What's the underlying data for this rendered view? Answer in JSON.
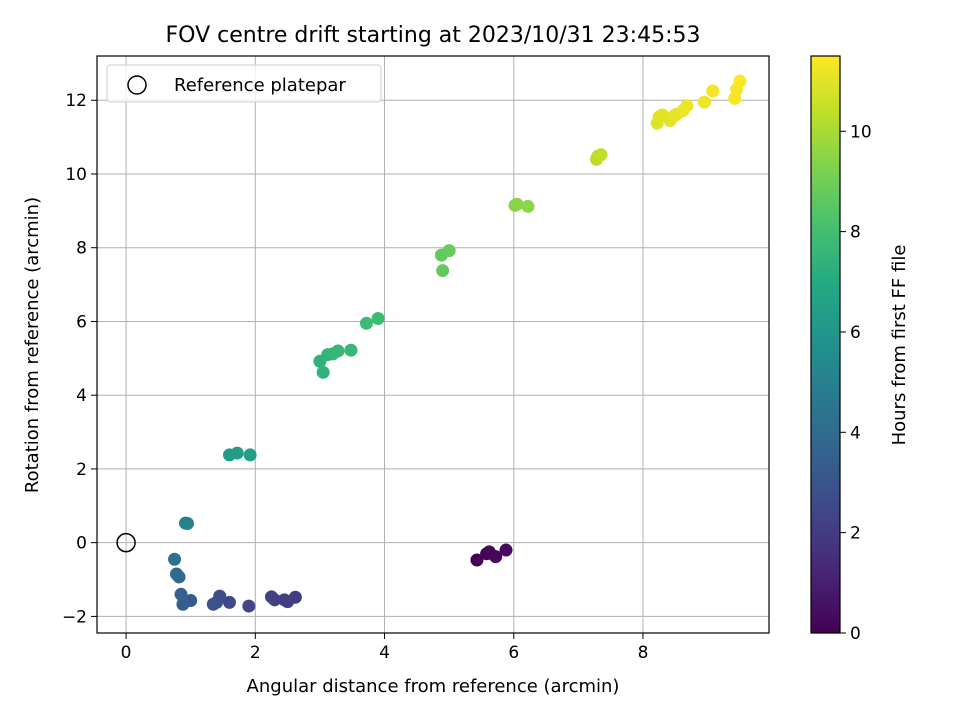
{
  "chart_data": {
    "type": "scatter",
    "title": "FOV centre drift starting at 2023/10/31 23:45:53",
    "xlabel": "Angular distance from reference (arcmin)",
    "ylabel": "Rotation from reference (arcmin)",
    "colorbar_label": "Hours from first FF file",
    "xlim": [
      -0.45,
      9.95
    ],
    "ylim": [
      -2.45,
      13.2
    ],
    "colorbar_range": [
      0,
      11.5
    ],
    "x_ticks": [
      0,
      2,
      4,
      6,
      8
    ],
    "y_ticks": [
      -2,
      0,
      2,
      4,
      6,
      8,
      10,
      12
    ],
    "colorbar_ticks": [
      0,
      2,
      4,
      6,
      8,
      10
    ],
    "grid": true,
    "colormap": "viridis",
    "legend": {
      "position": "top-left",
      "label": "Reference platepar"
    },
    "reference_point": {
      "x": 0,
      "y": 0
    },
    "points": [
      {
        "x": 5.43,
        "y": -0.47,
        "c": 0.0
      },
      {
        "x": 5.58,
        "y": -0.3,
        "c": 0.1
      },
      {
        "x": 5.62,
        "y": -0.25,
        "c": 0.15
      },
      {
        "x": 5.72,
        "y": -0.38,
        "c": 0.2
      },
      {
        "x": 5.88,
        "y": -0.2,
        "c": 0.3
      },
      {
        "x": 2.62,
        "y": -1.48,
        "c": 2.0
      },
      {
        "x": 2.5,
        "y": -1.6,
        "c": 2.05
      },
      {
        "x": 2.45,
        "y": -1.55,
        "c": 2.1
      },
      {
        "x": 2.3,
        "y": -1.55,
        "c": 2.15
      },
      {
        "x": 2.25,
        "y": -1.47,
        "c": 2.2
      },
      {
        "x": 1.9,
        "y": -1.72,
        "c": 2.4
      },
      {
        "x": 1.6,
        "y": -1.62,
        "c": 2.6
      },
      {
        "x": 1.45,
        "y": -1.45,
        "c": 2.7
      },
      {
        "x": 1.4,
        "y": -1.62,
        "c": 2.8
      },
      {
        "x": 1.35,
        "y": -1.67,
        "c": 2.9
      },
      {
        "x": 1.0,
        "y": -1.57,
        "c": 3.2
      },
      {
        "x": 0.88,
        "y": -1.67,
        "c": 3.4
      },
      {
        "x": 0.85,
        "y": -1.4,
        "c": 3.6
      },
      {
        "x": 0.82,
        "y": -0.93,
        "c": 3.9
      },
      {
        "x": 0.78,
        "y": -0.85,
        "c": 4.0
      },
      {
        "x": 0.75,
        "y": -0.45,
        "c": 4.3
      },
      {
        "x": 0.92,
        "y": 0.53,
        "c": 4.9
      },
      {
        "x": 0.95,
        "y": 0.52,
        "c": 5.0
      },
      {
        "x": 1.6,
        "y": 2.38,
        "c": 6.3
      },
      {
        "x": 1.72,
        "y": 2.43,
        "c": 6.4
      },
      {
        "x": 1.92,
        "y": 2.38,
        "c": 6.5
      },
      {
        "x": 3.0,
        "y": 4.92,
        "c": 7.4
      },
      {
        "x": 3.05,
        "y": 4.62,
        "c": 7.45
      },
      {
        "x": 3.12,
        "y": 5.1,
        "c": 7.5
      },
      {
        "x": 3.2,
        "y": 5.12,
        "c": 7.55
      },
      {
        "x": 3.28,
        "y": 5.2,
        "c": 7.6
      },
      {
        "x": 3.48,
        "y": 5.22,
        "c": 7.65
      },
      {
        "x": 3.72,
        "y": 5.95,
        "c": 7.8
      },
      {
        "x": 3.9,
        "y": 6.08,
        "c": 7.85
      },
      {
        "x": 4.88,
        "y": 7.8,
        "c": 8.7
      },
      {
        "x": 4.9,
        "y": 7.38,
        "c": 8.75
      },
      {
        "x": 5.0,
        "y": 7.92,
        "c": 8.8
      },
      {
        "x": 6.02,
        "y": 9.15,
        "c": 9.4
      },
      {
        "x": 6.05,
        "y": 9.18,
        "c": 9.45
      },
      {
        "x": 6.22,
        "y": 9.12,
        "c": 9.5
      },
      {
        "x": 7.28,
        "y": 10.4,
        "c": 10.3
      },
      {
        "x": 7.3,
        "y": 10.48,
        "c": 10.35
      },
      {
        "x": 7.35,
        "y": 10.52,
        "c": 10.4
      },
      {
        "x": 8.22,
        "y": 11.38,
        "c": 10.9
      },
      {
        "x": 8.25,
        "y": 11.55,
        "c": 10.95
      },
      {
        "x": 8.3,
        "y": 11.6,
        "c": 11.0
      },
      {
        "x": 8.42,
        "y": 11.45,
        "c": 11.05
      },
      {
        "x": 8.48,
        "y": 11.58,
        "c": 11.1
      },
      {
        "x": 8.52,
        "y": 11.62,
        "c": 11.1
      },
      {
        "x": 8.62,
        "y": 11.72,
        "c": 11.15
      },
      {
        "x": 8.68,
        "y": 11.85,
        "c": 11.2
      },
      {
        "x": 8.95,
        "y": 11.95,
        "c": 11.25
      },
      {
        "x": 9.08,
        "y": 12.25,
        "c": 11.3
      },
      {
        "x": 9.42,
        "y": 12.05,
        "c": 11.35
      },
      {
        "x": 9.45,
        "y": 12.3,
        "c": 11.4
      },
      {
        "x": 9.5,
        "y": 12.52,
        "c": 11.5
      }
    ]
  }
}
